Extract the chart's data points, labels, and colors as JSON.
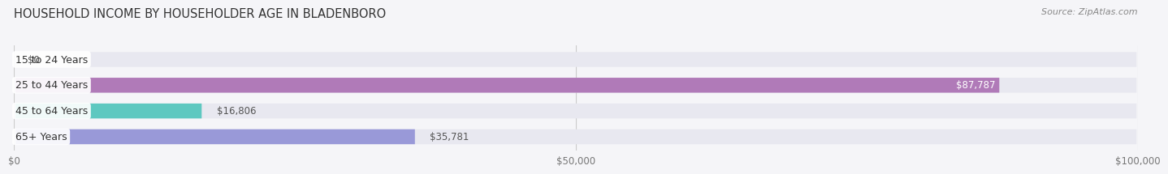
{
  "title": "HOUSEHOLD INCOME BY HOUSEHOLDER AGE IN BLADENBORO",
  "source": "Source: ZipAtlas.com",
  "categories": [
    "15 to 24 Years",
    "25 to 44 Years",
    "45 to 64 Years",
    "65+ Years"
  ],
  "values": [
    0,
    87787,
    16806,
    35781
  ],
  "labels": [
    "$0",
    "$87,787",
    "$16,806",
    "$35,781"
  ],
  "bar_colors": [
    "#a8c8e8",
    "#b07ab8",
    "#5ec8c0",
    "#9999d8"
  ],
  "bar_bg_color": "#e8e8f0",
  "xlim": [
    0,
    100000
  ],
  "xticks": [
    0,
    50000,
    100000
  ],
  "xticklabels": [
    "$0",
    "$50,000",
    "$100,000"
  ],
  "title_fontsize": 10.5,
  "source_fontsize": 8,
  "label_fontsize": 8.5,
  "cat_fontsize": 9,
  "background_color": "#f5f5f8"
}
